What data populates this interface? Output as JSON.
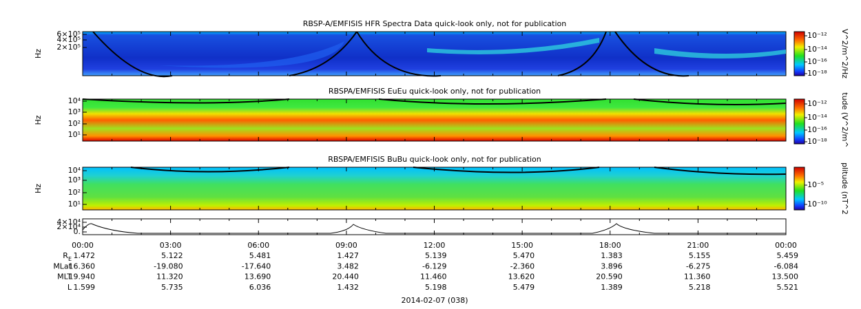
{
  "panels": [
    {
      "title": "RBSP-A/EMFISIS  HFR Spectra Data quick-look only, not for publication",
      "ylabel": "Hz",
      "yticks": [
        "6×10⁵",
        "4×10⁵",
        "2×10⁵"
      ],
      "colorbar_label": "V^2/m^2/Hz",
      "colorbar_ticks": [
        "10⁻¹²",
        "10⁻¹⁴",
        "10⁻¹⁶",
        "10⁻¹⁸"
      ]
    },
    {
      "title": "RBSPA/EMFISIS  EuEu quick-look only, not for publication",
      "ylabel": "Hz",
      "yticks": [
        "10⁴",
        "10³",
        "10²",
        "10¹"
      ],
      "colorbar_label": "tude (V^2/m^",
      "colorbar_ticks": [
        "10⁻¹²",
        "10⁻¹⁴",
        "10⁻¹⁶",
        "10⁻¹⁸"
      ]
    },
    {
      "title": "RBSPA/EMFISIS  BuBu quick-look only, not for publication",
      "ylabel": "Hz",
      "yticks": [
        "10⁴",
        "10³",
        "10²",
        "10¹"
      ],
      "colorbar_label": "plitude (nT^2",
      "colorbar_ticks": [
        "10⁻⁵",
        "10⁻¹⁰"
      ]
    },
    {
      "yticks": [
        "4×10⁴",
        "2×10⁴",
        "0."
      ]
    }
  ],
  "time_axis": [
    "00:00",
    "03:00",
    "06:00",
    "09:00",
    "12:00",
    "15:00",
    "18:00",
    "21:00",
    "00:00"
  ],
  "ephemeris": [
    {
      "label": "R",
      "sub": "E",
      "values": [
        "1.472",
        "5.122",
        "5.481",
        "1.427",
        "5.139",
        "5.470",
        "1.383",
        "5.155",
        "5.459"
      ]
    },
    {
      "label": "MLat",
      "values": [
        "16.360",
        "-19.080",
        "-17.640",
        "3.482",
        "-6.129",
        "-2.360",
        "3.896",
        "-6.275",
        "-6.084"
      ]
    },
    {
      "label": "MLT",
      "values": [
        "19.940",
        "11.320",
        "13.690",
        "20.440",
        "11.460",
        "13.620",
        "20.590",
        "11.360",
        "13.500"
      ]
    },
    {
      "label": "L",
      "values": [
        "1.599",
        "5.735",
        "6.036",
        "1.432",
        "5.198",
        "5.479",
        "1.389",
        "5.218",
        "5.521"
      ]
    }
  ],
  "date": "2014-02-07 (038)"
}
